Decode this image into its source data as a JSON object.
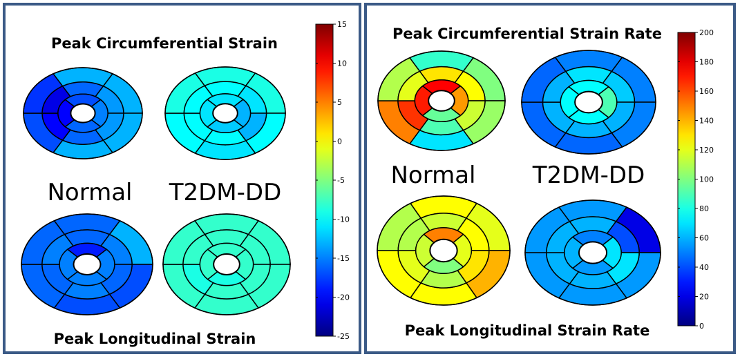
{
  "chart_data": [
    {
      "type": "heatmap",
      "subtype": "bullseye-17-segment",
      "panel": "left",
      "title_top": "Peak Circumferential Strain",
      "title_bottom": "Peak Longitudinal Strain",
      "group_labels": [
        "Normal",
        "T2DM-DD"
      ],
      "colorbar": {
        "min": -25,
        "max": 15,
        "ticks": [
          15,
          10,
          5,
          0,
          -5,
          -10,
          -15,
          -20,
          -25
        ]
      },
      "segment_order": "basal[6], mid[6], apical[4] clockwise from anterior",
      "plots": [
        {
          "group": "Normal",
          "measure": "Peak Circumferential Strain",
          "basal": [
            -13,
            -13,
            -13,
            -13,
            -17,
            -18
          ],
          "mid": [
            -16,
            -14,
            -14,
            -16,
            -20,
            -21
          ],
          "apical": [
            -17,
            -15,
            -16,
            -20
          ]
        },
        {
          "group": "T2DM-DD",
          "measure": "Peak Circumferential Strain",
          "basal": [
            -9,
            -9,
            -10,
            -11,
            -10,
            -9
          ],
          "mid": [
            -10,
            -11,
            -13,
            -10,
            -10,
            -10
          ],
          "apical": [
            -11,
            -13,
            -12,
            -11
          ]
        },
        {
          "group": "Normal",
          "measure": "Peak Longitudinal Strain",
          "basal": [
            -16,
            -13,
            -17,
            -17,
            -16,
            -16
          ],
          "mid": [
            -16,
            -15,
            -16,
            -15,
            -16,
            -15
          ],
          "apical": [
            -19,
            -15,
            -15,
            -15
          ]
        },
        {
          "group": "T2DM-DD",
          "measure": "Peak Longitudinal Strain",
          "basal": [
            -8,
            -8,
            -8,
            -8,
            -8,
            -8
          ],
          "mid": [
            -8,
            -8,
            -8,
            -8,
            -9,
            -8
          ],
          "apical": [
            -8,
            -8,
            -9,
            -8
          ]
        }
      ]
    },
    {
      "type": "heatmap",
      "subtype": "bullseye-17-segment",
      "panel": "right",
      "title_top": "Peak Circumferential Strain Rate",
      "title_bottom": "Peak Longitudinal Strain Rate",
      "group_labels": [
        "Normal",
        "T2DM-DD"
      ],
      "colorbar": {
        "min": 0,
        "max": 200,
        "ticks": [
          200,
          180,
          160,
          140,
          120,
          100,
          80,
          60,
          40,
          20,
          0
        ]
      },
      "segment_order": "basal[6], mid[6], apical[4] clockwise from anterior",
      "plots": [
        {
          "group": "Normal",
          "measure": "Peak Circumferential Strain Rate",
          "basal": [
            85,
            100,
            105,
            70,
            150,
            110
          ],
          "mid": [
            130,
            125,
            115,
            90,
            165,
            120
          ],
          "apical": [
            175,
            145,
            95,
            170
          ]
        },
        {
          "group": "T2DM-DD",
          "measure": "Peak Circumferential Strain Rate",
          "basal": [
            50,
            50,
            50,
            45,
            45,
            45
          ],
          "mid": [
            70,
            65,
            60,
            60,
            60,
            60
          ],
          "apical": [
            75,
            90,
            75,
            75
          ]
        },
        {
          "group": "Normal",
          "measure": "Peak Longitudinal Strain Rate",
          "basal": [
            125,
            120,
            140,
            125,
            125,
            110
          ],
          "mid": [
            115,
            125,
            130,
            110,
            120,
            110
          ],
          "apical": [
            150,
            120,
            100,
            115
          ]
        },
        {
          "group": "T2DM-DD",
          "measure": "Peak Longitudinal Strain Rate",
          "basal": [
            55,
            20,
            55,
            55,
            55,
            55
          ],
          "mid": [
            60,
            40,
            70,
            60,
            60,
            60
          ],
          "apical": [
            50,
            70,
            55,
            60
          ]
        }
      ]
    }
  ]
}
